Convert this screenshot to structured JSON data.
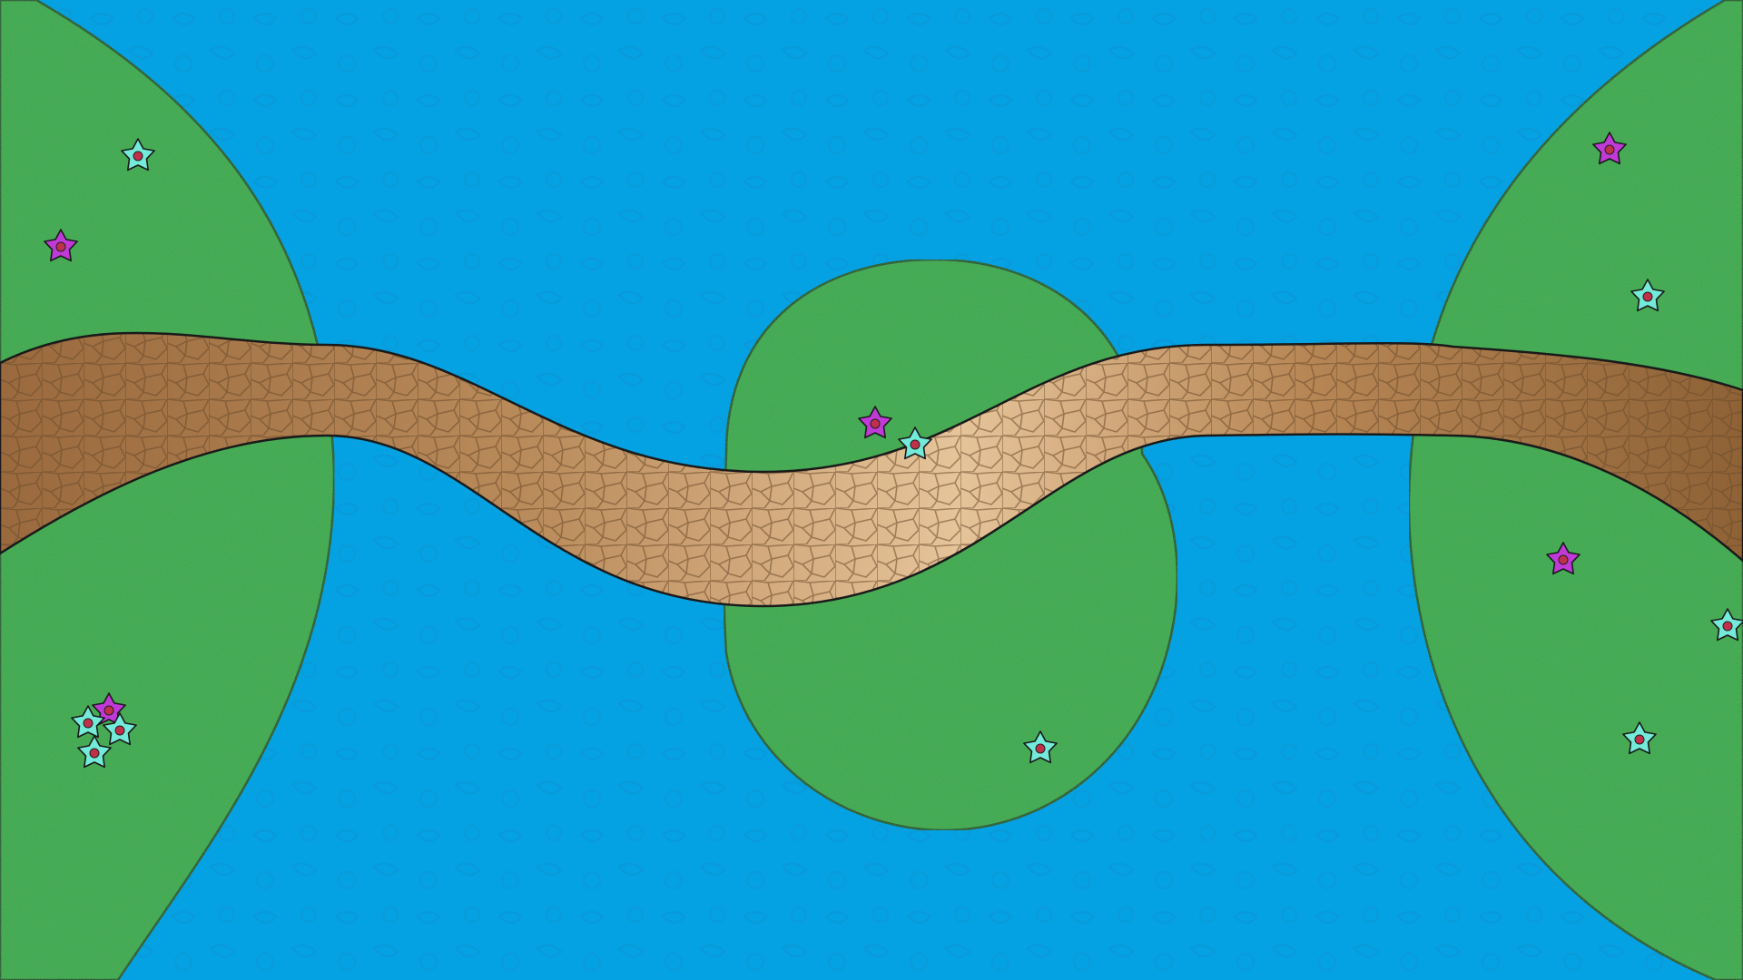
{
  "scene": {
    "colors": {
      "water": "#05a2e3",
      "water_pattern": "#0a94d6",
      "grass": "#3aa54a",
      "grass_edge": "#1a3d1c",
      "path_dark": "#8a6238",
      "path_light": "#e3bf92",
      "flower_cyan": "#74ead8",
      "flower_magenta": "#c03ad8",
      "flower_center": "#c0304a"
    },
    "islands": [
      {
        "name": "island-left",
        "flowers": [
          {
            "color": "cyan"
          },
          {
            "color": "magenta"
          },
          {
            "color": "magenta"
          },
          {
            "color": "cyan"
          },
          {
            "color": "cyan"
          },
          {
            "color": "cyan"
          }
        ]
      },
      {
        "name": "island-center",
        "flowers": [
          {
            "color": "magenta"
          },
          {
            "color": "cyan"
          },
          {
            "color": "cyan"
          }
        ]
      },
      {
        "name": "island-right",
        "flowers": [
          {
            "color": "magenta"
          },
          {
            "color": "cyan"
          },
          {
            "color": "magenta"
          },
          {
            "color": "cyan"
          },
          {
            "color": "cyan"
          }
        ]
      }
    ],
    "path": {
      "name": "cobblestone-path"
    }
  }
}
